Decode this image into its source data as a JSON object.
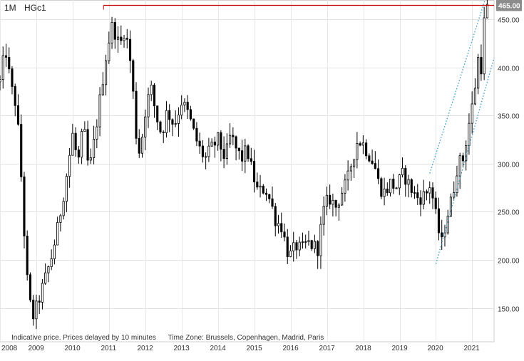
{
  "header": {
    "timeframe": "1M",
    "symbol": "HGc1"
  },
  "footer": {
    "price_note": "Indicative price. Prices delayed by 10 minutes",
    "timezone_note": "Time Zone: Brussels, Copenhagen, Madrid, Paris"
  },
  "chart_data": {
    "type": "candlestick",
    "title": "",
    "xlabel": "",
    "ylabel": "",
    "ylim": [
      115,
      470
    ],
    "xlim": [
      2008.0,
      2021.6
    ],
    "y_ticks": [
      150,
      200,
      250,
      300,
      350,
      400,
      450
    ],
    "y_tick_labels": [
      "150.00",
      "200.00",
      "250.00",
      "300.00",
      "350.00",
      "400.00",
      "450.00"
    ],
    "x_ticks": [
      2008,
      2009,
      2010,
      2011,
      2012,
      2013,
      2014,
      2015,
      2016,
      2017,
      2018,
      2019,
      2020,
      2021
    ],
    "x_tick_labels": [
      "2008",
      "2009",
      "2010",
      "2011",
      "2012",
      "2013",
      "2014",
      "2015",
      "2016",
      "2017",
      "2018",
      "2019",
      "2020",
      "2021"
    ],
    "grid": true,
    "last_price": 465.0,
    "last_price_label": "465.00",
    "colors": {
      "last_price_line": "#cc0000",
      "trend_lines": "#3399cc",
      "candles": "#000000"
    },
    "horizontal_line": {
      "value": 465,
      "from_x": 2010.85,
      "to_x": 2021.6
    },
    "trend_lines": [
      {
        "from": [
          2019.83,
          290
        ],
        "to": [
          2021.35,
          470
        ]
      },
      {
        "from": [
          2020.0,
          196
        ],
        "to": [
          2021.6,
          410
        ]
      }
    ],
    "anchors": [
      [
        2008.0,
        385
      ],
      [
        2008.15,
        420
      ],
      [
        2008.3,
        380
      ],
      [
        2008.45,
        360
      ],
      [
        2008.55,
        310
      ],
      [
        2008.65,
        240
      ],
      [
        2008.72,
        190
      ],
      [
        2008.8,
        160
      ],
      [
        2008.9,
        140
      ],
      [
        2009.0,
        150
      ],
      [
        2009.2,
        175
      ],
      [
        2009.4,
        200
      ],
      [
        2009.6,
        235
      ],
      [
        2009.8,
        280
      ],
      [
        2010.0,
        330
      ],
      [
        2010.15,
        300
      ],
      [
        2010.3,
        340
      ],
      [
        2010.45,
        290
      ],
      [
        2010.6,
        325
      ],
      [
        2010.8,
        380
      ],
      [
        2010.95,
        420
      ],
      [
        2011.1,
        445
      ],
      [
        2011.3,
        420
      ],
      [
        2011.4,
        440
      ],
      [
        2011.55,
        420
      ],
      [
        2011.65,
        380
      ],
      [
        2011.75,
        330
      ],
      [
        2011.85,
        310
      ],
      [
        2012.0,
        355
      ],
      [
        2012.15,
        380
      ],
      [
        2012.3,
        350
      ],
      [
        2012.45,
        330
      ],
      [
        2012.6,
        355
      ],
      [
        2012.8,
        340
      ],
      [
        2013.0,
        365
      ],
      [
        2013.2,
        350
      ],
      [
        2013.35,
        330
      ],
      [
        2013.5,
        315
      ],
      [
        2013.65,
        305
      ],
      [
        2013.8,
        315
      ],
      [
        2014.0,
        325
      ],
      [
        2014.2,
        305
      ],
      [
        2014.35,
        330
      ],
      [
        2014.5,
        315
      ],
      [
        2014.65,
        305
      ],
      [
        2014.8,
        315
      ],
      [
        2014.95,
        290
      ],
      [
        2015.1,
        270
      ],
      [
        2015.3,
        275
      ],
      [
        2015.45,
        260
      ],
      [
        2015.6,
        240
      ],
      [
        2015.75,
        235
      ],
      [
        2015.9,
        210
      ],
      [
        2016.0,
        205
      ],
      [
        2016.15,
        215
      ],
      [
        2016.3,
        210
      ],
      [
        2016.45,
        218
      ],
      [
        2016.6,
        215
      ],
      [
        2016.75,
        212
      ],
      [
        2016.9,
        250
      ],
      [
        2017.05,
        265
      ],
      [
        2017.25,
        255
      ],
      [
        2017.4,
        270
      ],
      [
        2017.55,
        280
      ],
      [
        2017.7,
        305
      ],
      [
        2017.85,
        325
      ],
      [
        2018.0,
        320
      ],
      [
        2018.15,
        310
      ],
      [
        2018.3,
        300
      ],
      [
        2018.45,
        275
      ],
      [
        2018.6,
        270
      ],
      [
        2018.75,
        280
      ],
      [
        2018.9,
        275
      ],
      [
        2019.1,
        290
      ],
      [
        2019.3,
        275
      ],
      [
        2019.45,
        265
      ],
      [
        2019.6,
        265
      ],
      [
        2019.75,
        270
      ],
      [
        2019.85,
        280
      ],
      [
        2019.95,
        255
      ],
      [
        2020.05,
        235
      ],
      [
        2020.15,
        215
      ],
      [
        2020.3,
        245
      ],
      [
        2020.45,
        265
      ],
      [
        2020.6,
        300
      ],
      [
        2020.75,
        305
      ],
      [
        2020.9,
        340
      ],
      [
        2021.05,
        370
      ],
      [
        2021.15,
        410
      ],
      [
        2021.25,
        400
      ],
      [
        2021.35,
        460
      ],
      [
        2021.42,
        462
      ]
    ],
    "candle_step_years": 0.0833
  }
}
